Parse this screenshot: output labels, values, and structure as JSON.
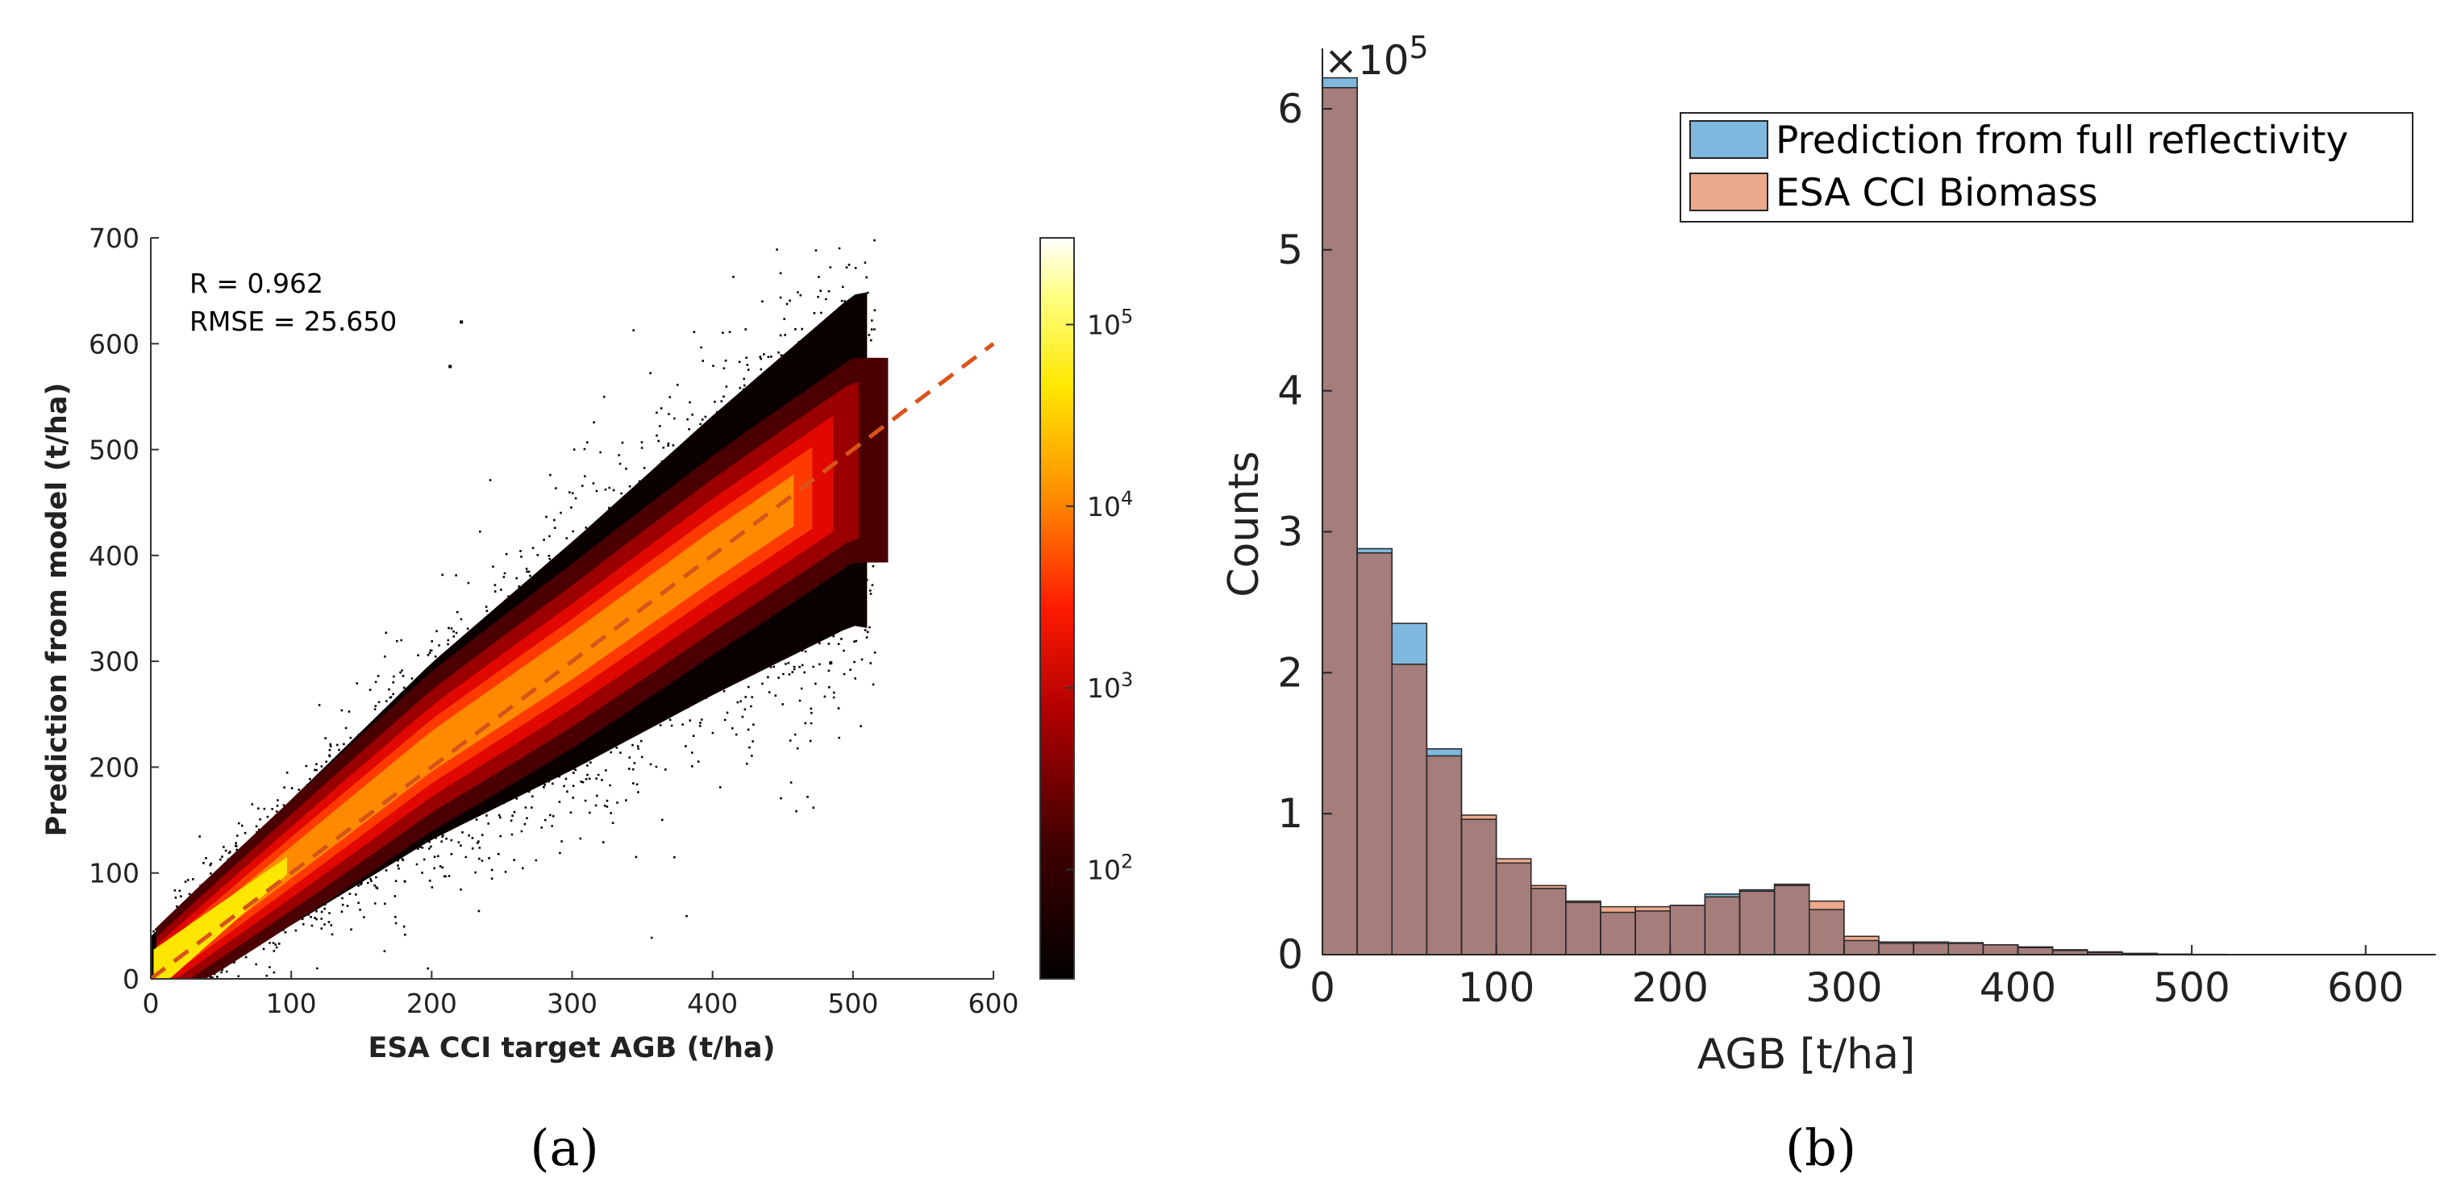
{
  "figure": {
    "panel_a_label": "(a)",
    "panel_b_label": "(b)"
  },
  "colors": {
    "scatter_low": "#000000",
    "scatter_high": "#ffff80",
    "one_to_one_line": "#d95319",
    "hist_prediction": "#0072bd",
    "hist_esa": "#d95319",
    "hist_overlap": "#a57d7a"
  },
  "chart_data": [
    {
      "type": "scatter",
      "subtype": "density-scatter",
      "title": "",
      "xlabel": "ESA CCI target AGB (t/ha)",
      "ylabel": "Prediction from model (t/ha)",
      "xlim": [
        0,
        600
      ],
      "ylim": [
        0,
        700
      ],
      "x_ticks": [
        0,
        100,
        200,
        300,
        400,
        500,
        600
      ],
      "y_ticks": [
        0,
        100,
        200,
        300,
        400,
        500,
        600,
        700
      ],
      "annotations": [
        "R =  0.962",
        "RMSE = 25.650"
      ],
      "reference_line": {
        "label": "1:1",
        "x": [
          0,
          600
        ],
        "y": [
          0,
          600
        ],
        "style": "dashed"
      },
      "point_density_ridge": {
        "x": [
          0,
          100,
          200,
          300,
          400,
          500
        ],
        "y": [
          5,
          110,
          215,
          305,
          400,
          490
        ]
      },
      "outliers": [
        [
          220,
          622
        ],
        [
          212,
          580
        ],
        [
          470,
          600
        ],
        [
          490,
          600
        ],
        [
          475,
          325
        ],
        [
          483,
          300
        ]
      ],
      "colorbar": {
        "scale": "log",
        "range": [
          25,
          300000
        ],
        "ticks": [
          100,
          1000,
          10000,
          100000
        ],
        "tick_base": "10",
        "tick_exponents": [
          "2",
          "3",
          "4",
          "5"
        ],
        "colormap": "hot"
      }
    },
    {
      "type": "bar",
      "subtype": "overlaid-histogram",
      "title": "",
      "xlabel": "AGB [t/ha]",
      "ylabel": "Counts",
      "xlim": [
        0,
        640
      ],
      "ylim": [
        0,
        620000
      ],
      "x_ticks": [
        0,
        100,
        200,
        300,
        400,
        500,
        600
      ],
      "y_ticks": [
        0,
        1,
        2,
        3,
        4,
        5,
        6
      ],
      "y_multiplier_prefix": "×10",
      "y_multiplier_exponent": "5",
      "bin_width": 20,
      "bin_edges_start": 0,
      "legend_position": "top-right",
      "series": [
        {
          "name": "Prediction from full reflectivity",
          "values": [
            622000,
            288000,
            235000,
            146000,
            96000,
            65000,
            47000,
            37000,
            30000,
            31000,
            35000,
            43000,
            46000,
            49000,
            32000,
            10000,
            8000,
            8000,
            8000,
            7000,
            5000,
            3000,
            1500,
            800,
            300,
            150,
            80,
            40,
            20,
            10,
            5,
            2
          ]
        },
        {
          "name": "ESA CCI Biomass",
          "values": [
            615000,
            285000,
            206000,
            141000,
            99000,
            68000,
            49000,
            38000,
            34000,
            34000,
            35000,
            41000,
            45000,
            50000,
            38000,
            13000,
            9000,
            9000,
            8500,
            7000,
            5500,
            3500,
            2000,
            900,
            400,
            200,
            100,
            50,
            25,
            10,
            5,
            2
          ]
        }
      ]
    }
  ]
}
